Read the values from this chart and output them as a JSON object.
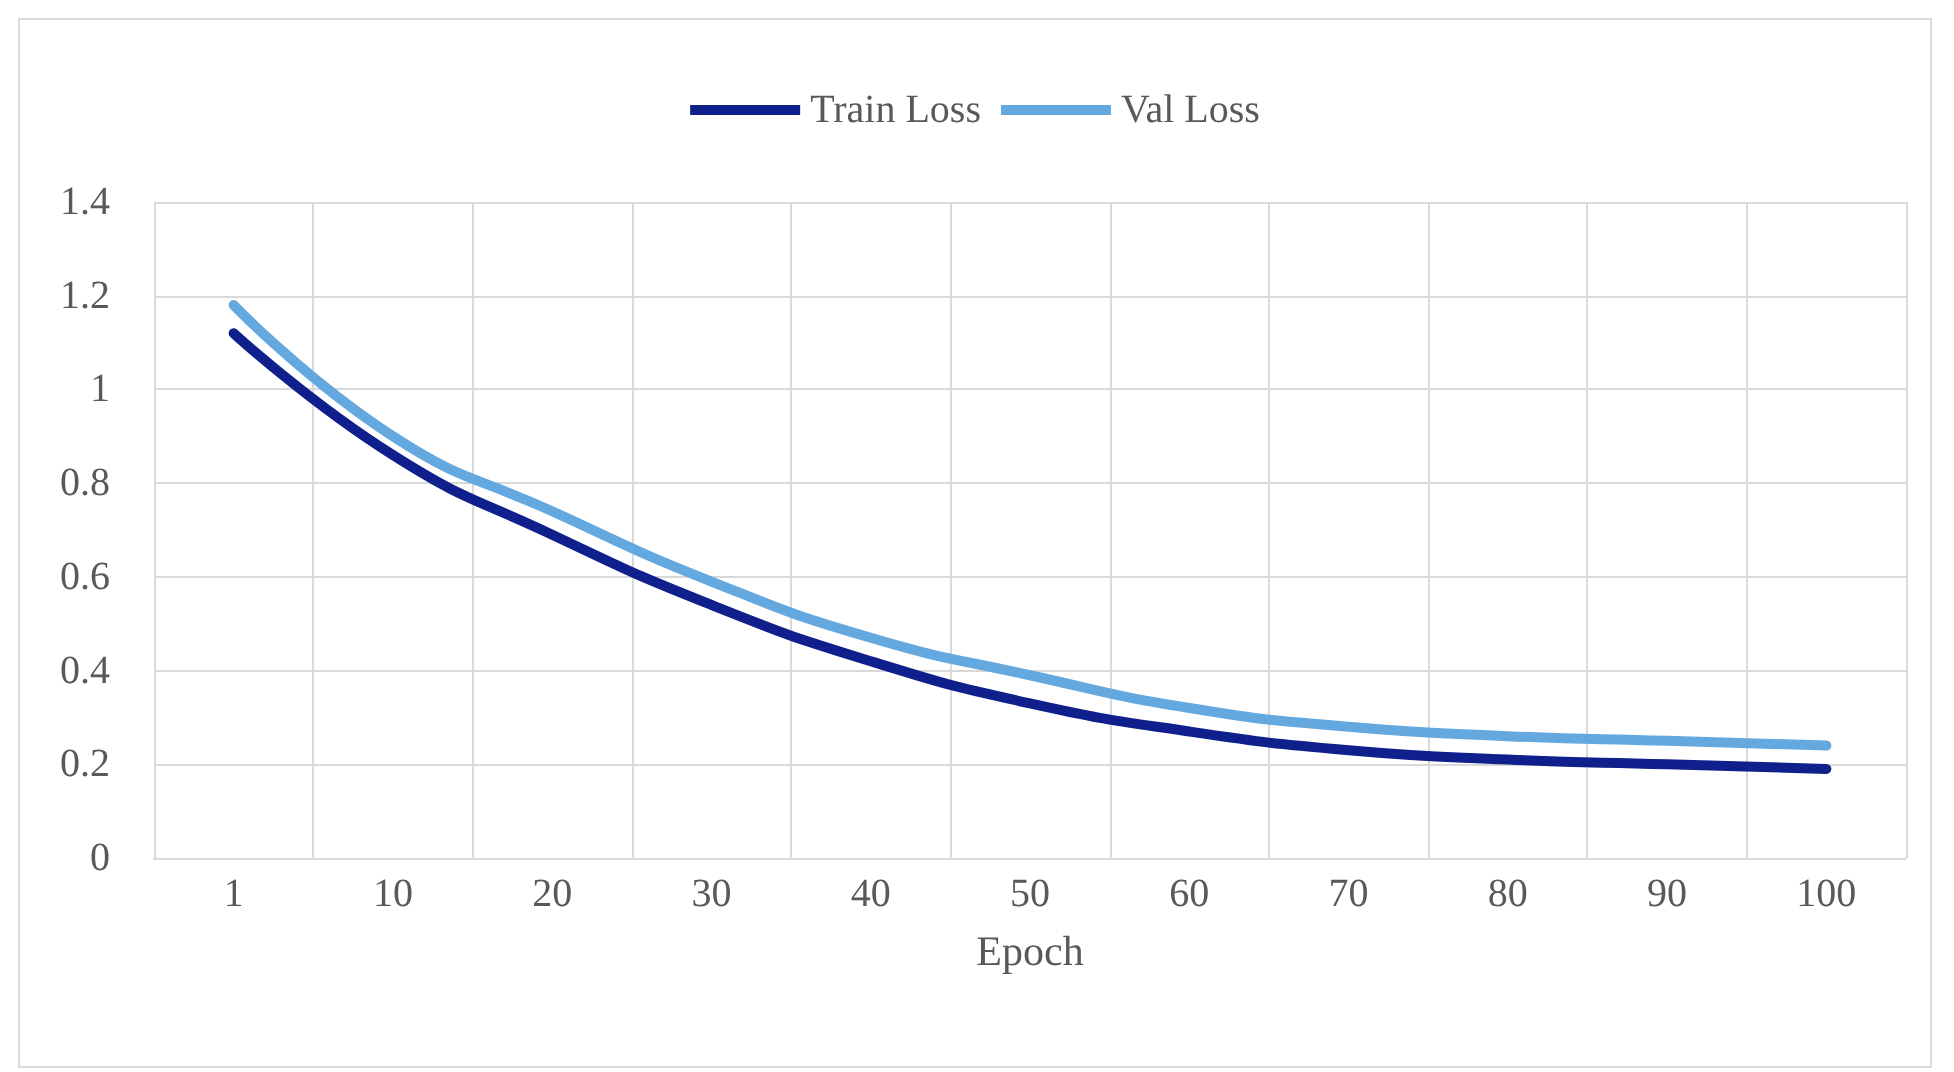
{
  "chart_data": {
    "type": "line",
    "xlabel": "Epoch",
    "categories": [
      "1",
      "10",
      "20",
      "30",
      "40",
      "50",
      "60",
      "70",
      "80",
      "90",
      "100"
    ],
    "series": [
      {
        "name": "Train Loss",
        "color": "#0f1f8c",
        "values": [
          1.12,
          0.86,
          0.69,
          0.54,
          0.42,
          0.33,
          0.27,
          0.23,
          0.21,
          0.2,
          0.19
        ]
      },
      {
        "name": "Val Loss",
        "color": "#64a8e0",
        "values": [
          1.18,
          0.9,
          0.74,
          0.59,
          0.47,
          0.39,
          0.32,
          0.28,
          0.26,
          0.25,
          0.24
        ]
      }
    ],
    "ylim": [
      0,
      1.4
    ],
    "yticks": [
      0,
      0.2,
      0.4,
      0.6,
      0.8,
      1,
      1.2,
      1.4
    ],
    "grid": true,
    "legend": "top",
    "marker": "none",
    "line_style": "solid"
  }
}
